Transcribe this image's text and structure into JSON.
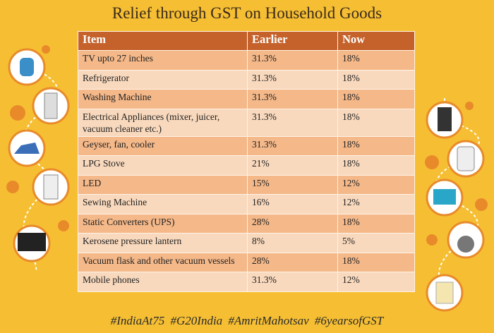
{
  "title": "Relief through GST on Household Goods",
  "table": {
    "header": [
      "Item",
      "Earlier",
      "Now"
    ],
    "rows": [
      [
        "TV upto 27 inches",
        "31.3%",
        "18%"
      ],
      [
        "Refrigerator",
        "31.3%",
        "18%"
      ],
      [
        "Washing Machine",
        "31.3%",
        "18%"
      ],
      [
        "Electrical Appliances (mixer, juicer, vacuum cleaner etc.)",
        "31.3%",
        "18%"
      ],
      [
        "Geyser, fan, cooler",
        "31.3%",
        "18%"
      ],
      [
        "LPG Stove",
        "21%",
        "18%"
      ],
      [
        "LED",
        "15%",
        "12%"
      ],
      [
        "Sewing Machine",
        "16%",
        "12%"
      ],
      [
        "Static Converters (UPS)",
        "28%",
        "18%"
      ],
      [
        "Kerosene pressure lantern",
        "8%",
        "5%"
      ],
      [
        "Vacuum flask and other vacuum vessels",
        "28%",
        "18%"
      ],
      [
        "Mobile phones",
        "31.3%",
        "12%"
      ]
    ]
  },
  "footer": "#IndiaAt75  #G20India  #AmritMahotsav #6yearsofGST"
}
